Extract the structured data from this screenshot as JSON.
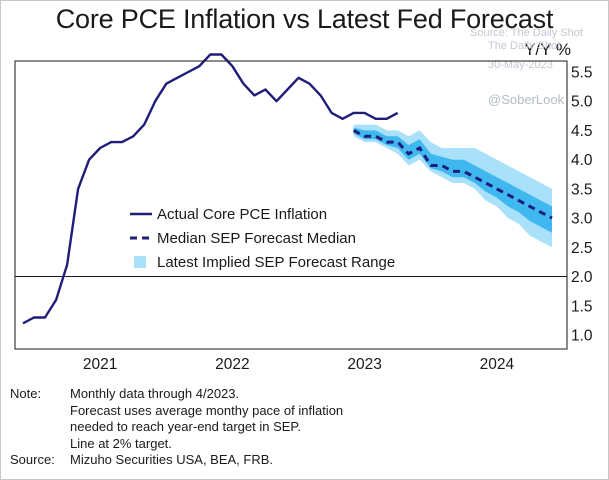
{
  "chart_data": {
    "type": "line",
    "title": "Core PCE Inflation vs Latest Fed Forecast",
    "ylabel": "Y/Y %",
    "ylim": [
      1.0,
      5.5
    ],
    "xlim": [
      "2020-06",
      "2024-07"
    ],
    "yticks": [
      "5.5",
      "5.0",
      "4.5",
      "4.0",
      "3.5",
      "3.0",
      "2.5",
      "2.0",
      "1.5",
      "1.0"
    ],
    "xticks": [
      {
        "label": "2021",
        "date": "2021-01"
      },
      {
        "label": "2022",
        "date": "2022-01"
      },
      {
        "label": "2023",
        "date": "2023-01"
      },
      {
        "label": "2024",
        "date": "2024-01"
      }
    ],
    "reference_line": {
      "y": 2.0
    },
    "legend": {
      "placement": "center-left",
      "items": [
        {
          "label": "Actual Core PCE Inflation",
          "style": "solid-line"
        },
        {
          "label": "Median SEP Forecast Median",
          "style": "dashed-line"
        },
        {
          "label": "Latest Implied SEP Forecast Range",
          "style": "band"
        }
      ]
    },
    "series": [
      {
        "name": "Actual Core PCE Inflation",
        "color": "#1f1d7a",
        "x": [
          "2020-06",
          "2020-07",
          "2020-08",
          "2020-09",
          "2020-10",
          "2020-11",
          "2020-12",
          "2021-01",
          "2021-02",
          "2021-03",
          "2021-04",
          "2021-05",
          "2021-06",
          "2021-07",
          "2021-08",
          "2021-09",
          "2021-10",
          "2021-11",
          "2021-12",
          "2022-01",
          "2022-02",
          "2022-03",
          "2022-04",
          "2022-05",
          "2022-06",
          "2022-07",
          "2022-08",
          "2022-09",
          "2022-10",
          "2022-11",
          "2022-12",
          "2023-01",
          "2023-02",
          "2023-03",
          "2023-04"
        ],
        "y": [
          1.2,
          1.3,
          1.3,
          1.6,
          2.2,
          3.5,
          4.0,
          4.2,
          4.3,
          4.3,
          4.4,
          4.6,
          5.0,
          5.3,
          5.4,
          5.5,
          5.6,
          5.8,
          5.8,
          5.6,
          5.3,
          5.1,
          5.2,
          5.0,
          5.2,
          5.4,
          5.3,
          5.1,
          4.8,
          4.7,
          4.8,
          4.8,
          4.7,
          4.7,
          4.8
        ]
      },
      {
        "name": "Median SEP Forecast Median",
        "color": "#1f1d7a",
        "x": [
          "2022-12",
          "2023-01",
          "2023-02",
          "2023-03",
          "2023-04",
          "2023-05",
          "2023-06",
          "2023-07",
          "2023-08",
          "2023-09",
          "2023-10",
          "2023-11",
          "2023-12",
          "2024-01",
          "2024-02",
          "2024-03",
          "2024-04",
          "2024-05",
          "2024-06"
        ],
        "y": [
          4.5,
          4.4,
          4.4,
          4.3,
          4.3,
          4.1,
          4.2,
          3.9,
          3.9,
          3.8,
          3.8,
          3.7,
          3.6,
          3.5,
          3.4,
          3.3,
          3.2,
          3.1,
          3.0
        ]
      },
      {
        "name": "Latest Implied SEP Forecast Range",
        "color": "#4fc3f7",
        "x": [
          "2022-12",
          "2023-01",
          "2023-02",
          "2023-03",
          "2023-04",
          "2023-05",
          "2023-06",
          "2023-07",
          "2023-08",
          "2023-09",
          "2023-10",
          "2023-11",
          "2023-12",
          "2024-01",
          "2024-02",
          "2024-03",
          "2024-04",
          "2024-05",
          "2024-06"
        ],
        "low": [
          4.4,
          4.3,
          4.3,
          4.2,
          4.1,
          3.9,
          4.0,
          3.8,
          3.7,
          3.6,
          3.6,
          3.5,
          3.3,
          3.2,
          3.0,
          2.9,
          2.7,
          2.6,
          2.5
        ],
        "high": [
          4.6,
          4.6,
          4.6,
          4.5,
          4.5,
          4.4,
          4.5,
          4.3,
          4.2,
          4.2,
          4.2,
          4.2,
          4.1,
          4.0,
          3.9,
          3.8,
          3.7,
          3.6,
          3.5
        ],
        "inner_low": [
          4.45,
          4.35,
          4.35,
          4.25,
          4.2,
          4.0,
          4.1,
          3.85,
          3.8,
          3.7,
          3.7,
          3.6,
          3.45,
          3.35,
          3.2,
          3.1,
          2.95,
          2.85,
          2.75
        ],
        "inner_high": [
          4.55,
          4.5,
          4.5,
          4.4,
          4.4,
          4.25,
          4.35,
          4.1,
          4.05,
          4.0,
          4.0,
          3.9,
          3.8,
          3.7,
          3.6,
          3.5,
          3.4,
          3.3,
          3.2
        ]
      }
    ]
  },
  "unit_label": "Y/Y %",
  "watermark": {
    "source": "Source: The Daily Shot",
    "name": "The Daily Shot",
    "date": "30-May-2023",
    "handle": "@SoberLook"
  },
  "notes": {
    "note_key": "Note:",
    "note_lines": [
      "Monthly data through 4/2023.",
      "Forecast uses average monthy pace of inflation",
      "needed to reach year-end target in SEP.",
      "Line at 2% target."
    ],
    "source_key": "Source:",
    "source_text": "Mizuho Securities USA, BEA, FRB."
  },
  "colors": {
    "line": "#1f1d7a",
    "band_outer": "#a9e0fa",
    "band_inner": "#3fb8f0",
    "reference": "#1a1a1a"
  }
}
